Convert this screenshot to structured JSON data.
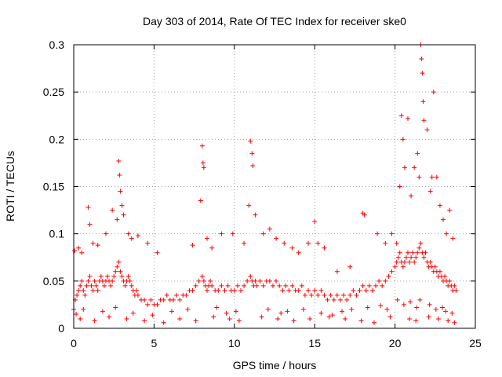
{
  "chart_data": {
    "type": "scatter",
    "title": "Day 303 of 2014, Rate Of TEC Index for receiver ske0",
    "xlabel": "GPS time / hours",
    "ylabel": "ROTI / TECUs",
    "xlim": [
      0,
      25
    ],
    "ylim": [
      0,
      0.3
    ],
    "xticks": [
      0,
      5,
      10,
      15,
      20,
      25
    ],
    "xtick_labels": [
      "0",
      "5",
      "10",
      "15",
      "20",
      "25"
    ],
    "yticks": [
      0,
      0.05,
      0.1,
      0.15,
      0.2,
      0.25,
      0.3
    ],
    "ytick_labels": [
      "0",
      "0.05",
      "0.1",
      "0.15",
      "0.2",
      "0.25",
      "0.3"
    ],
    "grid": true,
    "legend": "none",
    "marker": "plus",
    "series_color": "#ff0000",
    "series": [
      {
        "x": [
          0.0,
          0.1,
          0.2,
          0.3,
          0.4,
          0.5,
          0.6,
          0.7,
          0.8,
          0.9,
          1.0,
          1.1,
          1.2,
          1.3,
          1.4,
          1.5,
          1.6,
          1.7,
          1.8,
          1.9,
          2.0,
          2.1,
          2.2,
          2.3,
          2.4,
          2.5,
          2.6,
          2.7,
          2.8,
          2.9,
          3.0,
          3.1,
          3.2,
          3.3,
          3.4,
          3.5,
          3.6,
          3.7,
          3.8,
          3.9,
          4.0,
          4.2,
          4.4,
          4.6,
          4.8,
          5.0,
          5.2,
          5.4,
          5.6,
          5.8,
          6.0,
          6.2,
          6.4,
          6.6,
          6.8,
          7.0,
          7.2,
          7.4,
          7.6,
          7.8,
          8.0,
          8.1,
          8.2,
          8.3,
          8.4,
          8.5,
          8.6,
          8.8,
          9.0,
          9.2,
          9.4,
          9.6,
          9.8,
          10.0,
          10.2,
          10.4,
          10.6,
          10.8,
          11.0,
          11.1,
          11.2,
          11.3,
          11.4,
          11.6,
          11.8,
          12.0,
          12.2,
          12.4,
          12.6,
          12.8,
          13.0,
          13.2,
          13.4,
          13.6,
          13.8,
          14.0,
          14.2,
          14.4,
          14.6,
          14.8,
          15.0,
          15.2,
          15.4,
          15.6,
          15.8,
          16.0,
          16.2,
          16.4,
          16.6,
          16.8,
          17.0,
          17.2,
          17.4,
          17.6,
          17.8,
          18.0,
          18.2,
          18.4,
          18.6,
          18.8,
          19.0,
          19.2,
          19.4,
          19.6,
          19.8,
          20.0,
          20.1,
          20.2,
          20.3,
          20.4,
          20.5,
          20.6,
          20.7,
          20.8,
          20.9,
          21.0,
          21.1,
          21.2,
          21.3,
          21.4,
          21.5,
          21.6,
          21.7,
          21.8,
          21.9,
          22.0,
          22.1,
          22.2,
          22.3,
          22.4,
          22.5,
          22.6,
          22.7,
          22.8,
          22.9,
          23.0,
          23.1,
          23.2,
          23.3,
          23.4,
          23.5,
          23.6,
          23.7,
          23.8,
          0.05,
          0.3,
          0.5,
          0.9,
          1.0,
          1.2,
          1.5,
          2.0,
          2.4,
          2.7,
          2.8,
          2.85,
          2.9,
          3.0,
          3.1,
          3.4,
          3.6,
          4.0,
          4.6,
          5.2,
          7.4,
          7.9,
          8.0,
          8.05,
          8.1,
          8.3,
          8.6,
          9.2,
          9.9,
          10.6,
          10.9,
          11.0,
          11.1,
          11.15,
          11.3,
          11.8,
          12.2,
          12.6,
          13.1,
          13.6,
          14.0,
          14.6,
          15.0,
          15.2,
          15.6,
          16.4,
          17.2,
          18.0,
          18.1,
          18.9,
          19.4,
          19.8,
          20.1,
          20.3,
          20.4,
          20.5,
          20.6,
          20.8,
          21.0,
          21.2,
          21.4,
          21.5,
          21.6,
          21.65,
          21.7,
          21.75,
          21.8,
          22.0,
          22.2,
          22.3,
          22.4,
          22.6,
          22.8,
          23.0,
          23.2,
          23.4,
          23.6,
          0.4,
          1.3,
          2.2,
          3.3,
          4.4,
          5.6,
          6.6,
          7.6,
          8.7,
          9.7,
          10.3,
          11.7,
          12.7,
          13.7,
          14.7,
          15.9,
          16.9,
          17.9,
          18.7,
          19.7,
          20.9,
          21.3,
          22.1,
          22.7,
          23.3,
          23.7,
          0.15,
          0.6,
          1.8,
          2.6,
          3.7,
          4.9,
          6.1,
          7.1,
          8.9,
          9.5,
          10.1,
          12.1,
          12.9,
          13.3,
          14.3,
          15.4,
          16.1,
          16.7,
          17.3,
          18.3,
          19.1,
          19.5,
          20.15,
          20.55,
          20.95,
          21.35,
          21.55,
          22.15,
          22.55,
          22.95,
          23.15,
          23.55
        ],
        "y": [
          0.02,
          0.03,
          0.035,
          0.04,
          0.045,
          0.05,
          0.04,
          0.035,
          0.045,
          0.05,
          0.055,
          0.045,
          0.04,
          0.05,
          0.045,
          0.04,
          0.05,
          0.055,
          0.05,
          0.045,
          0.05,
          0.055,
          0.05,
          0.045,
          0.05,
          0.055,
          0.06,
          0.065,
          0.07,
          0.06,
          0.055,
          0.05,
          0.045,
          0.05,
          0.055,
          0.05,
          0.045,
          0.04,
          0.035,
          0.04,
          0.035,
          0.03,
          0.03,
          0.025,
          0.03,
          0.025,
          0.025,
          0.03,
          0.03,
          0.035,
          0.03,
          0.03,
          0.035,
          0.03,
          0.035,
          0.035,
          0.04,
          0.04,
          0.045,
          0.05,
          0.055,
          0.05,
          0.045,
          0.04,
          0.045,
          0.05,
          0.045,
          0.04,
          0.04,
          0.045,
          0.04,
          0.045,
          0.04,
          0.04,
          0.045,
          0.04,
          0.045,
          0.05,
          0.055,
          0.05,
          0.045,
          0.05,
          0.045,
          0.05,
          0.045,
          0.05,
          0.05,
          0.045,
          0.05,
          0.045,
          0.04,
          0.045,
          0.04,
          0.045,
          0.04,
          0.04,
          0.045,
          0.035,
          0.04,
          0.035,
          0.04,
          0.035,
          0.04,
          0.035,
          0.03,
          0.035,
          0.03,
          0.035,
          0.03,
          0.035,
          0.03,
          0.035,
          0.04,
          0.035,
          0.04,
          0.045,
          0.04,
          0.045,
          0.04,
          0.045,
          0.05,
          0.045,
          0.05,
          0.055,
          0.06,
          0.065,
          0.07,
          0.075,
          0.08,
          0.07,
          0.065,
          0.07,
          0.075,
          0.08,
          0.07,
          0.075,
          0.08,
          0.07,
          0.075,
          0.08,
          0.085,
          0.09,
          0.08,
          0.075,
          0.08,
          0.07,
          0.065,
          0.07,
          0.065,
          0.06,
          0.065,
          0.06,
          0.055,
          0.06,
          0.055,
          0.05,
          0.055,
          0.05,
          0.045,
          0.05,
          0.045,
          0.04,
          0.045,
          0.04,
          0.082,
          0.085,
          0.08,
          0.128,
          0.11,
          0.09,
          0.088,
          0.1,
          0.125,
          0.115,
          0.177,
          0.162,
          0.145,
          0.13,
          0.12,
          0.1,
          0.095,
          0.098,
          0.09,
          0.08,
          0.088,
          0.135,
          0.193,
          0.175,
          0.17,
          0.095,
          0.085,
          0.1,
          0.1,
          0.09,
          0.13,
          0.198,
          0.185,
          0.172,
          0.12,
          0.1,
          0.105,
          0.095,
          0.09,
          0.085,
          0.08,
          0.09,
          0.113,
          0.09,
          0.085,
          0.06,
          0.065,
          0.122,
          0.12,
          0.1,
          0.09,
          0.1,
          0.09,
          0.15,
          0.225,
          0.2,
          0.17,
          0.222,
          0.14,
          0.17,
          0.185,
          0.16,
          0.3,
          0.285,
          0.27,
          0.24,
          0.22,
          0.21,
          0.145,
          0.16,
          0.25,
          0.16,
          0.13,
          0.115,
          0.1,
          0.125,
          0.095,
          0.01,
          0.008,
          0.012,
          0.01,
          0.008,
          0.006,
          0.01,
          0.008,
          0.012,
          0.01,
          0.008,
          0.012,
          0.01,
          0.008,
          0.01,
          0.012,
          0.01,
          0.008,
          0.006,
          0.012,
          0.01,
          0.008,
          0.012,
          0.01,
          0.008,
          0.006,
          0.015,
          0.02,
          0.018,
          0.022,
          0.016,
          0.014,
          0.018,
          0.02,
          0.022,
          0.016,
          0.018,
          0.02,
          0.016,
          0.018,
          0.02,
          0.016,
          0.014,
          0.018,
          0.02,
          0.022,
          0.024,
          0.02,
          0.03,
          0.025,
          0.028,
          0.022,
          0.03,
          0.025,
          0.02,
          0.022,
          0.018,
          0.016
        ]
      }
    ]
  }
}
